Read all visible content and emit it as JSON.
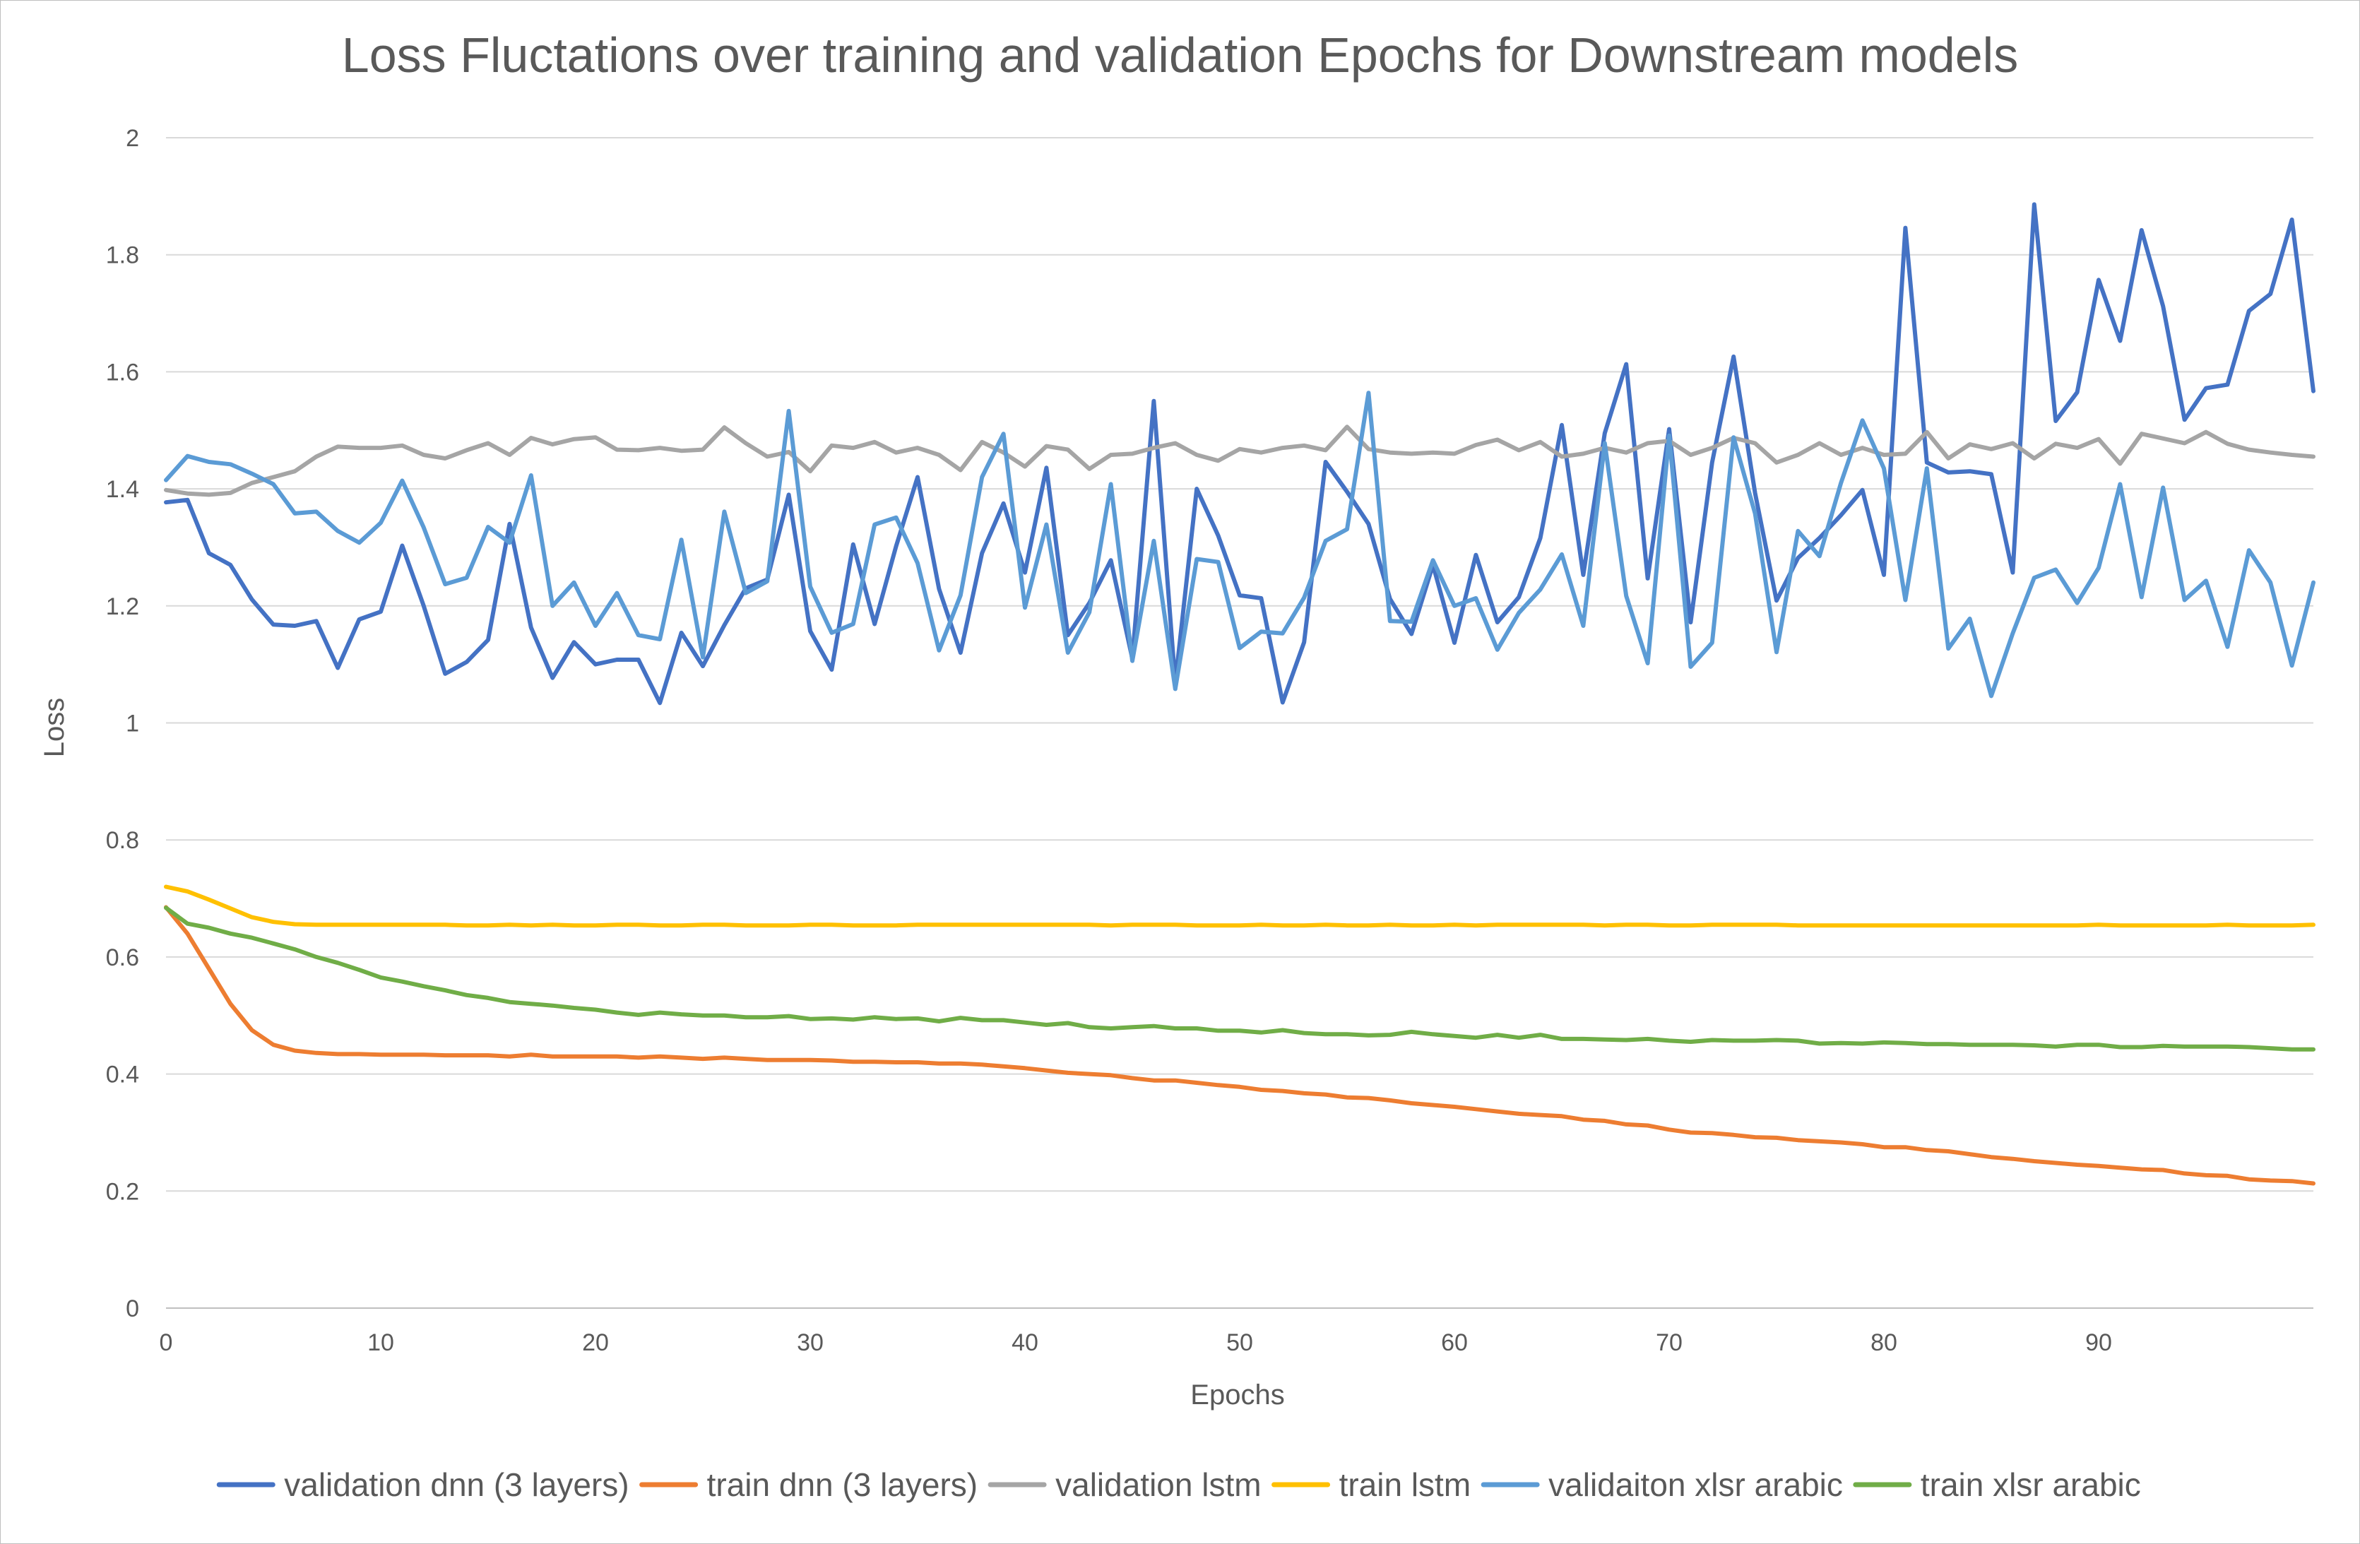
{
  "chart_data": {
    "type": "line",
    "title": "Loss Fluctations over training and validation Epochs for Downstream models",
    "xlabel": "Epochs",
    "ylabel": "Loss",
    "xlim": [
      0,
      99
    ],
    "ylim": [
      0,
      2
    ],
    "xticks": [
      "0",
      "10",
      "20",
      "30",
      "40",
      "50",
      "60",
      "70",
      "80",
      "90"
    ],
    "yticks": [
      "0",
      "0.2",
      "0.4",
      "0.6",
      "0.8",
      "1",
      "1.2",
      "1.4",
      "1.6",
      "1.8",
      "2"
    ],
    "grid": "horizontal",
    "legend_position": "bottom",
    "series": [
      {
        "name": "validation dnn (3 layers)",
        "color": "#4472C4",
        "values": [
          1.377,
          1.381,
          1.29,
          1.27,
          1.211,
          1.168,
          1.166,
          1.174,
          1.094,
          1.177,
          1.19,
          1.303,
          1.2,
          1.084,
          1.104,
          1.142,
          1.34,
          1.163,
          1.077,
          1.138,
          1.1,
          1.108,
          1.108,
          1.034,
          1.154,
          1.097,
          1.167,
          1.23,
          1.245,
          1.39,
          1.157,
          1.091,
          1.305,
          1.169,
          1.302,
          1.42,
          1.229,
          1.12,
          1.29,
          1.375,
          1.257,
          1.436,
          1.15,
          1.205,
          1.278,
          1.11,
          1.55,
          1.068,
          1.4,
          1.32,
          1.218,
          1.213,
          1.035,
          1.138,
          1.446,
          1.395,
          1.34,
          1.212,
          1.152,
          1.27,
          1.137,
          1.287,
          1.172,
          1.215,
          1.316,
          1.509,
          1.253,
          1.495,
          1.613,
          1.247,
          1.502,
          1.172,
          1.445,
          1.626,
          1.393,
          1.209,
          1.282,
          1.316,
          1.355,
          1.398,
          1.253,
          1.846,
          1.445,
          1.428,
          1.43,
          1.425,
          1.257,
          1.886,
          1.516,
          1.565,
          1.757,
          1.653,
          1.842,
          1.712,
          1.518,
          1.572,
          1.578,
          1.704,
          1.733,
          1.86,
          1.567
        ]
      },
      {
        "name": "train dnn (3 layers)",
        "color": "#ED7D31",
        "values": [
          0.685,
          0.64,
          0.58,
          0.52,
          0.475,
          0.45,
          0.44,
          0.436,
          0.434,
          0.434,
          0.433,
          0.433,
          0.433,
          0.432,
          0.432,
          0.432,
          0.43,
          0.433,
          0.43,
          0.43,
          0.43,
          0.43,
          0.428,
          0.43,
          0.428,
          0.426,
          0.428,
          0.426,
          0.424,
          0.424,
          0.424,
          0.423,
          0.421,
          0.421,
          0.42,
          0.42,
          0.418,
          0.418,
          0.416,
          0.413,
          0.41,
          0.406,
          0.402,
          0.4,
          0.398,
          0.393,
          0.389,
          0.389,
          0.385,
          0.381,
          0.378,
          0.373,
          0.371,
          0.367,
          0.365,
          0.36,
          0.359,
          0.355,
          0.35,
          0.347,
          0.344,
          0.34,
          0.336,
          0.332,
          0.33,
          0.328,
          0.322,
          0.32,
          0.314,
          0.312,
          0.305,
          0.3,
          0.299,
          0.296,
          0.292,
          0.291,
          0.287,
          0.285,
          0.283,
          0.28,
          0.275,
          0.275,
          0.27,
          0.268,
          0.263,
          0.258,
          0.255,
          0.251,
          0.248,
          0.245,
          0.243,
          0.24,
          0.237,
          0.236,
          0.23,
          0.227,
          0.226,
          0.22,
          0.218,
          0.217,
          0.213
        ]
      },
      {
        "name": "validation lstm",
        "color": "#A5A5A5",
        "values": [
          1.398,
          1.392,
          1.39,
          1.393,
          1.41,
          1.42,
          1.43,
          1.455,
          1.472,
          1.47,
          1.47,
          1.474,
          1.458,
          1.452,
          1.466,
          1.478,
          1.458,
          1.487,
          1.476,
          1.485,
          1.488,
          1.467,
          1.466,
          1.47,
          1.465,
          1.467,
          1.505,
          1.478,
          1.455,
          1.463,
          1.43,
          1.474,
          1.47,
          1.48,
          1.462,
          1.47,
          1.458,
          1.432,
          1.48,
          1.462,
          1.438,
          1.473,
          1.467,
          1.434,
          1.458,
          1.46,
          1.47,
          1.478,
          1.458,
          1.448,
          1.468,
          1.462,
          1.47,
          1.474,
          1.466,
          1.506,
          1.468,
          1.462,
          1.46,
          1.462,
          1.46,
          1.475,
          1.484,
          1.466,
          1.48,
          1.455,
          1.46,
          1.47,
          1.462,
          1.478,
          1.482,
          1.458,
          1.47,
          1.487,
          1.478,
          1.445,
          1.458,
          1.478,
          1.458,
          1.47,
          1.458,
          1.46,
          1.497,
          1.452,
          1.476,
          1.468,
          1.478,
          1.452,
          1.477,
          1.47,
          1.485,
          1.443,
          1.494,
          1.486,
          1.478,
          1.497,
          1.477,
          1.467,
          1.462,
          1.458,
          1.455
        ]
      },
      {
        "name": "train lstm",
        "color": "#FFC000",
        "values": [
          0.72,
          0.712,
          0.698,
          0.683,
          0.668,
          0.66,
          0.656,
          0.655,
          0.655,
          0.655,
          0.655,
          0.655,
          0.655,
          0.655,
          0.654,
          0.654,
          0.655,
          0.654,
          0.655,
          0.654,
          0.654,
          0.655,
          0.655,
          0.654,
          0.654,
          0.655,
          0.655,
          0.654,
          0.654,
          0.654,
          0.655,
          0.655,
          0.654,
          0.654,
          0.654,
          0.655,
          0.655,
          0.655,
          0.655,
          0.655,
          0.655,
          0.655,
          0.655,
          0.655,
          0.654,
          0.655,
          0.655,
          0.655,
          0.654,
          0.654,
          0.654,
          0.655,
          0.654,
          0.654,
          0.655,
          0.654,
          0.654,
          0.655,
          0.654,
          0.654,
          0.655,
          0.654,
          0.655,
          0.655,
          0.655,
          0.655,
          0.655,
          0.654,
          0.655,
          0.655,
          0.654,
          0.654,
          0.655,
          0.655,
          0.655,
          0.655,
          0.654,
          0.654,
          0.654,
          0.654,
          0.654,
          0.654,
          0.654,
          0.654,
          0.654,
          0.654,
          0.654,
          0.654,
          0.654,
          0.654,
          0.655,
          0.654,
          0.654,
          0.654,
          0.654,
          0.654,
          0.655,
          0.654,
          0.654,
          0.654,
          0.655
        ]
      },
      {
        "name": "validaiton xlsr arabic",
        "color": "#5B9BD5",
        "values": [
          1.415,
          1.456,
          1.446,
          1.442,
          1.426,
          1.408,
          1.358,
          1.361,
          1.328,
          1.308,
          1.342,
          1.414,
          1.334,
          1.237,
          1.248,
          1.335,
          1.308,
          1.423,
          1.2,
          1.24,
          1.166,
          1.222,
          1.15,
          1.143,
          1.313,
          1.112,
          1.361,
          1.222,
          1.242,
          1.533,
          1.233,
          1.154,
          1.169,
          1.339,
          1.351,
          1.273,
          1.124,
          1.218,
          1.42,
          1.494,
          1.197,
          1.339,
          1.12,
          1.189,
          1.408,
          1.106,
          1.311,
          1.058,
          1.28,
          1.275,
          1.128,
          1.156,
          1.153,
          1.214,
          1.311,
          1.331,
          1.564,
          1.174,
          1.173,
          1.278,
          1.2,
          1.213,
          1.125,
          1.188,
          1.228,
          1.288,
          1.166,
          1.478,
          1.217,
          1.102,
          1.491,
          1.096,
          1.137,
          1.488,
          1.358,
          1.121,
          1.328,
          1.285,
          1.41,
          1.517,
          1.435,
          1.21,
          1.435,
          1.127,
          1.178,
          1.046,
          1.153,
          1.248,
          1.262,
          1.205,
          1.265,
          1.408,
          1.215,
          1.402,
          1.21,
          1.243,
          1.13,
          1.295,
          1.24,
          1.098,
          1.24
        ]
      },
      {
        "name": "train xlsr arabic",
        "color": "#70AD47",
        "values": [
          0.684,
          0.657,
          0.65,
          0.64,
          0.633,
          0.623,
          0.613,
          0.6,
          0.59,
          0.578,
          0.565,
          0.558,
          0.55,
          0.543,
          0.535,
          0.53,
          0.523,
          0.52,
          0.517,
          0.513,
          0.51,
          0.505,
          0.501,
          0.505,
          0.502,
          0.5,
          0.5,
          0.497,
          0.497,
          0.499,
          0.494,
          0.495,
          0.493,
          0.497,
          0.494,
          0.495,
          0.49,
          0.496,
          0.492,
          0.492,
          0.488,
          0.484,
          0.487,
          0.48,
          0.478,
          0.48,
          0.482,
          0.478,
          0.478,
          0.474,
          0.474,
          0.471,
          0.475,
          0.47,
          0.468,
          0.468,
          0.466,
          0.467,
          0.472,
          0.468,
          0.465,
          0.462,
          0.467,
          0.462,
          0.467,
          0.46,
          0.46,
          0.459,
          0.458,
          0.46,
          0.457,
          0.455,
          0.458,
          0.457,
          0.457,
          0.458,
          0.457,
          0.452,
          0.453,
          0.452,
          0.454,
          0.453,
          0.451,
          0.451,
          0.45,
          0.45,
          0.45,
          0.449,
          0.447,
          0.45,
          0.45,
          0.446,
          0.446,
          0.448,
          0.447,
          0.447,
          0.447,
          0.446,
          0.444,
          0.442,
          0.442
        ]
      }
    ]
  }
}
